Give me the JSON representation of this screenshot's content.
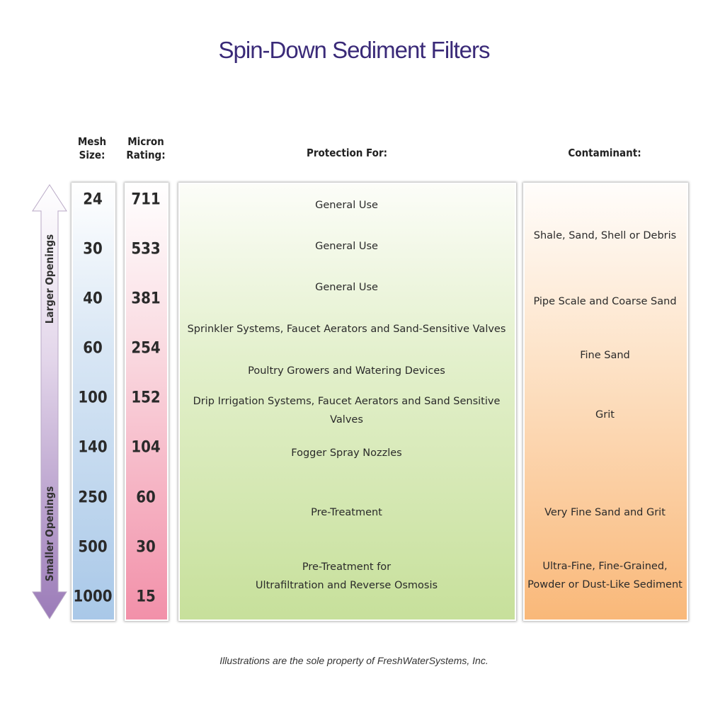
{
  "title": "Spin-Down Sediment Filters",
  "headers": {
    "mesh": [
      "Mesh",
      "Size:"
    ],
    "micron": [
      "Micron",
      "Rating:"
    ],
    "protection": "Protection For:",
    "contaminant": "Contaminant:"
  },
  "arrow": {
    "top_label": "Larger Openings",
    "bottom_label": "Smaller Openings"
  },
  "mesh_sizes": [
    "24",
    "30",
    "40",
    "60",
    "100",
    "140",
    "250",
    "500",
    "1000"
  ],
  "micron_ratings": [
    "711",
    "533",
    "381",
    "254",
    "152",
    "104",
    "60",
    "30",
    "15"
  ],
  "protection": [
    "General Use",
    "General Use",
    "General Use",
    "Sprinkler Systems,  Faucet Aerators  and  Sand-Sensitive Valves",
    "Poultry Growers  and  Watering Devices",
    "Drip Irrigation Systems, Faucet Aerators and Sand Sensitive Valves",
    "Fogger Spray Nozzles",
    "Pre-Treatment",
    "Pre-Treatment for\nUltrafiltration  and  Reverse Osmosis"
  ],
  "contaminants": [
    "Shale, Sand, Shell or Debris",
    "Pipe Scale and Coarse Sand",
    "Fine Sand",
    "Grit",
    "Very Fine Sand and Grit",
    "Ultra-Fine, Fine-Grained,\nPowder or Dust-Like Sediment"
  ],
  "footnote": "Illustrations are the sole property of FreshWaterSystems, Inc.",
  "colors": {
    "title": "#3a2a78",
    "mesh": "#a9c8e8",
    "micron": "#f290a9",
    "protection": "#c7e09b",
    "contaminant": "#f9b879",
    "arrow": "#9b7bb8"
  }
}
